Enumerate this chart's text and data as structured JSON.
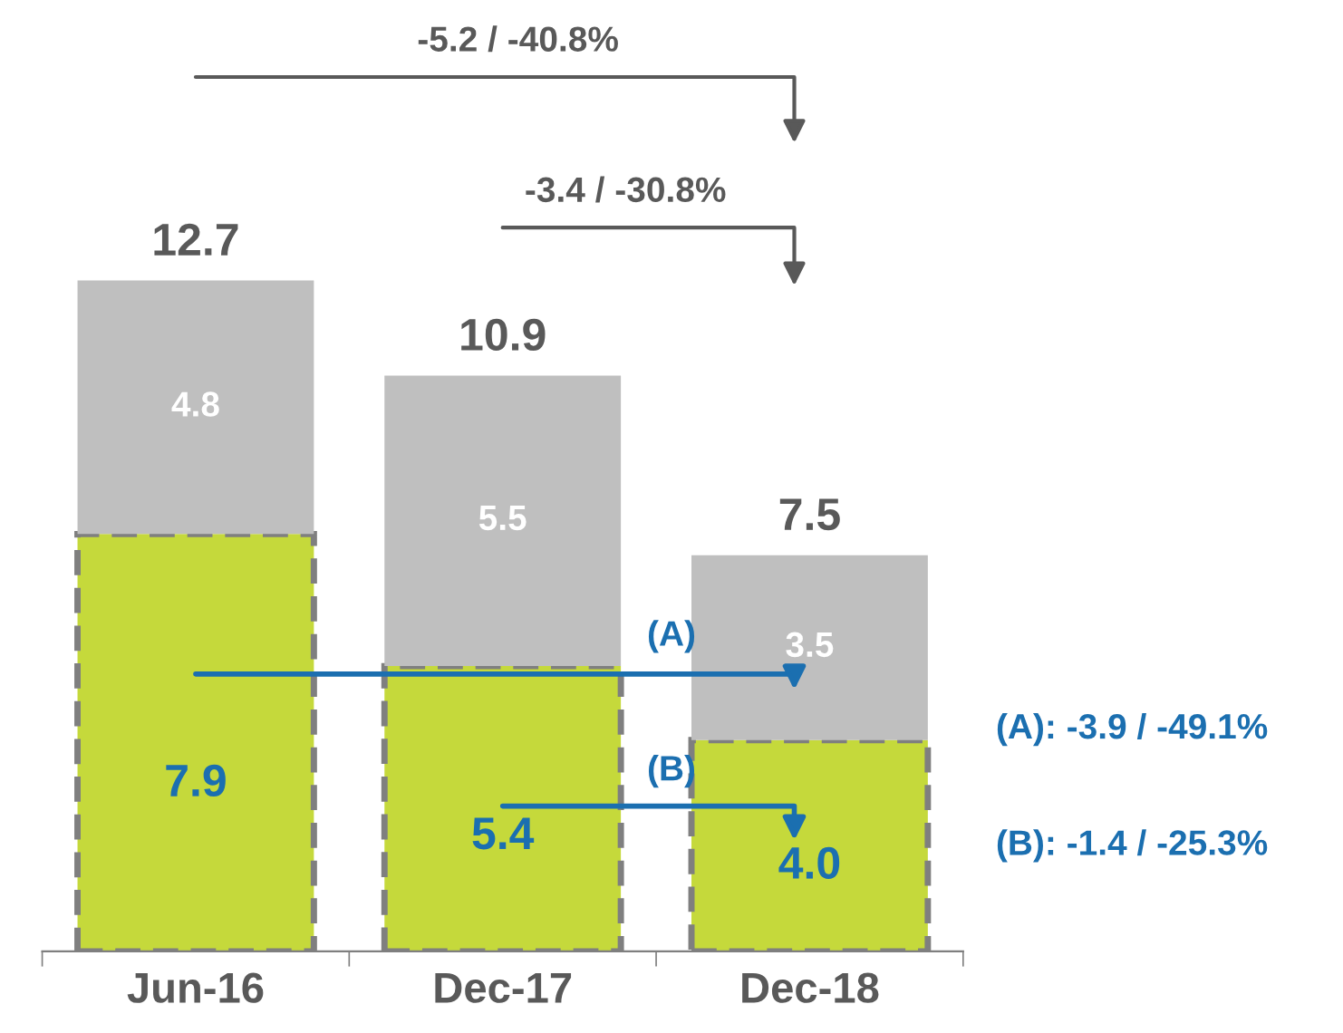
{
  "chart_data": {
    "type": "bar",
    "stacked": true,
    "categories": [
      "Jun-16",
      "Dec-17",
      "Dec-18"
    ],
    "series": [
      {
        "color": "#c5d93b",
        "values": [
          7.9,
          5.4,
          4.0
        ],
        "value_labels": [
          "7.9",
          "5.4",
          "4.0"
        ],
        "line_style": "dashed"
      },
      {
        "color": "#bfbfbf",
        "values": [
          4.8,
          5.5,
          3.5
        ],
        "value_labels": [
          "4.8",
          "5.5",
          "3.5"
        ]
      }
    ],
    "totals": [
      "12.7",
      "10.9",
      "7.5"
    ],
    "annotations": [
      "-5.2 / -40.8%",
      "-3.4 / -30.8%",
      "(A)",
      "(B)",
      "(A): -3.9 / -49.1%",
      "(B): -1.4 / -25.3%"
    ],
    "legend": false,
    "grid": false
  }
}
